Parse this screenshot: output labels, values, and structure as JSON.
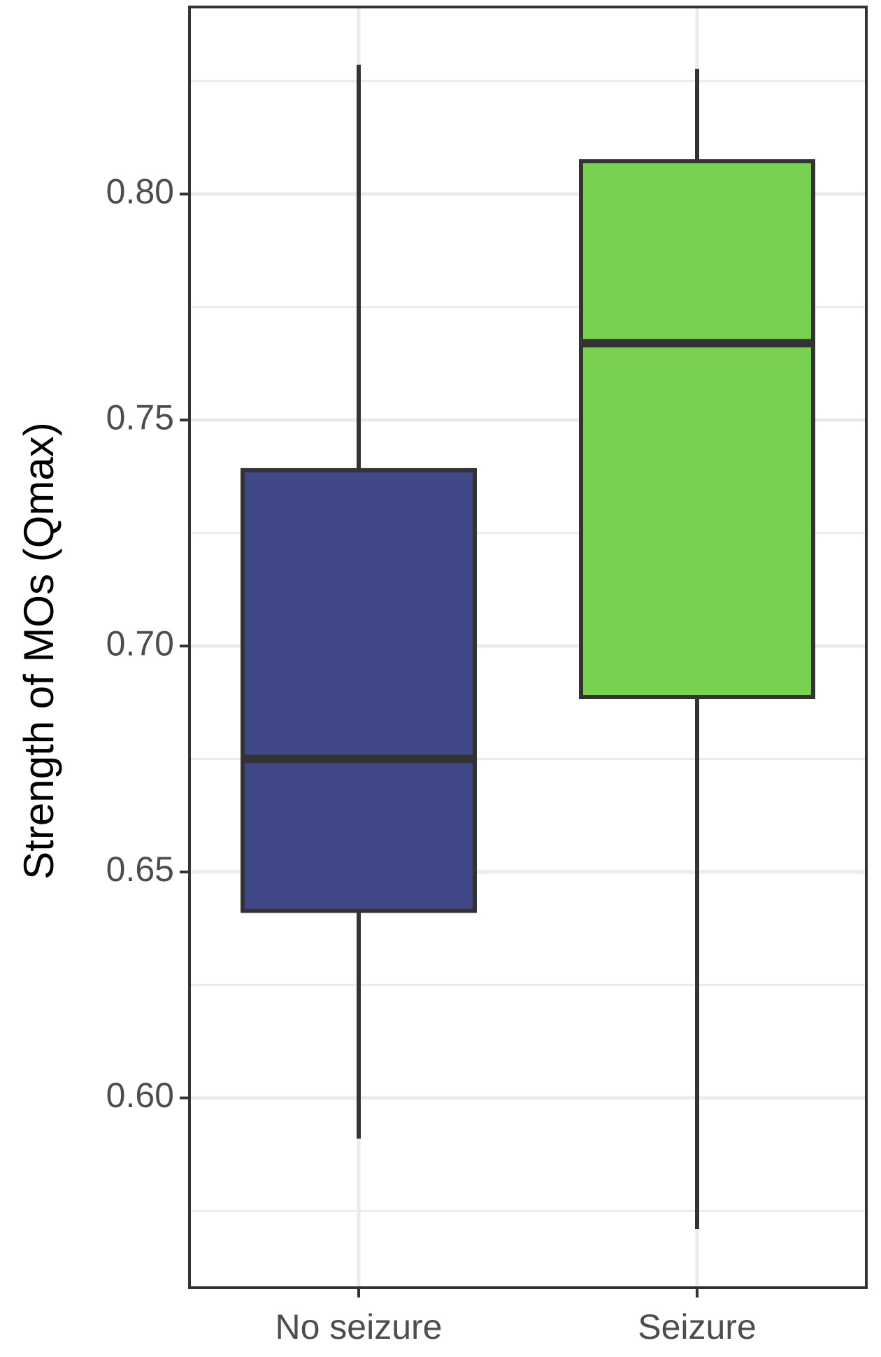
{
  "chart_data": {
    "type": "box",
    "y_label": "Strength of MOs (Qmax)",
    "categories": [
      "No seizure",
      "Seizure"
    ],
    "colors": [
      "#404788",
      "#7ad151"
    ],
    "boxes": [
      {
        "min": 0.591,
        "q1": 0.6414,
        "median": 0.675,
        "q3": 0.7389,
        "max": 0.8286
      },
      {
        "min": 0.571,
        "q1": 0.6887,
        "median": 0.767,
        "q3": 0.8073,
        "max": 0.8277
      }
    ],
    "ylim": [
      0.558,
      0.8414
    ],
    "yticks": [
      {
        "value": 0.6,
        "label": "0.60"
      },
      {
        "value": 0.65,
        "label": "0.65"
      },
      {
        "value": 0.7,
        "label": "0.70"
      },
      {
        "value": 0.75,
        "label": "0.75"
      },
      {
        "value": 0.8,
        "label": "0.80"
      }
    ],
    "minor_yticks": [
      0.575,
      0.625,
      0.675,
      0.725,
      0.775,
      0.825
    ],
    "grid": true
  }
}
